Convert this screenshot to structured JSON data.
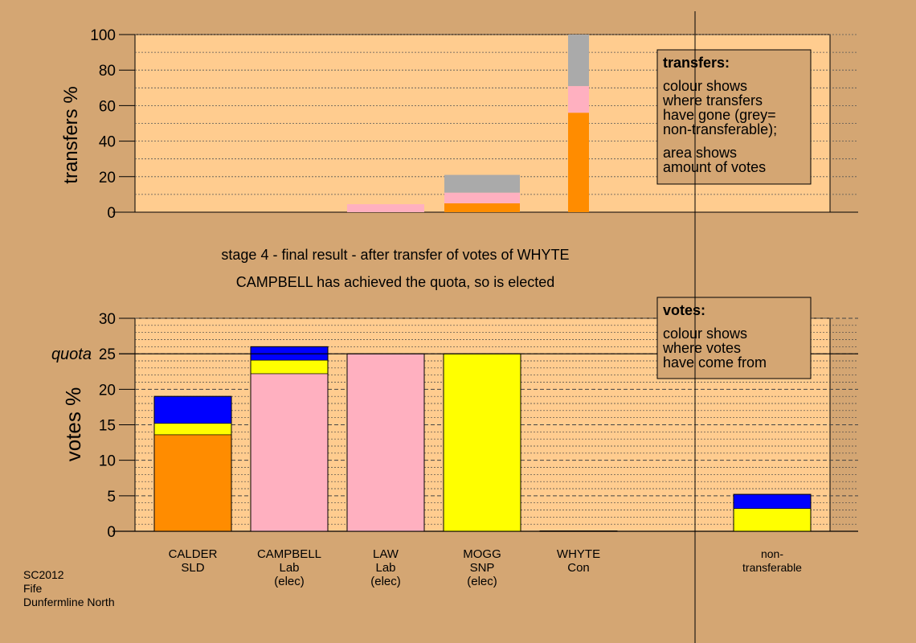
{
  "colors": {
    "background": "#d4a673",
    "plot_area": "#ffcc8f",
    "SLD": "#ff8c00",
    "Lab": "#ffb0c0",
    "SNP": "#ffff00",
    "Con": "#0000ff",
    "non_transferable": "#aaaaaa",
    "note_box": "#d4a673"
  },
  "title": {
    "line1": "stage 4 - final result - after transfer of votes of WHYTE",
    "line2": "CAMPBELL has achieved the quota, so is elected"
  },
  "footer": {
    "line1": "SC2012",
    "line2": "Fife",
    "line3": "Dunfermline North"
  },
  "candidates": [
    {
      "name": "CALDER",
      "party": "SLD",
      "status": ""
    },
    {
      "name": "CAMPBELL",
      "party": "Lab",
      "status": "(elec)"
    },
    {
      "name": "LAW",
      "party": "Lab",
      "status": "(elec)"
    },
    {
      "name": "MOGG",
      "party": "SNP",
      "status": "(elec)"
    },
    {
      "name": "WHYTE",
      "party": "Con",
      "status": ""
    },
    {
      "name": "non-",
      "party": "transferable",
      "status": ""
    }
  ],
  "legends": {
    "transfers": {
      "title": "transfers:",
      "text1": [
        "colour shows",
        "where transfers",
        "have gone (grey=",
        "non-transferable);"
      ],
      "text2": [
        "area shows",
        "amount of votes"
      ]
    },
    "votes": {
      "title": "votes:",
      "text1": [
        "colour shows",
        "where votes",
        "have come from"
      ]
    }
  },
  "chart_data": [
    {
      "type": "bar",
      "stacked": true,
      "ylabel": "transfers %",
      "ylim": [
        0,
        100
      ],
      "yticks": [
        0,
        20,
        40,
        60,
        80,
        100
      ],
      "grid": true,
      "bars": [
        {
          "category": "CALDER",
          "width_pct_of_votes": 0,
          "segments": []
        },
        {
          "category": "CAMPBELL",
          "width_pct_of_votes": 0,
          "segments": []
        },
        {
          "category": "LAW",
          "width_pct_of_votes": 0.3,
          "segments": [
            {
              "party": "Lab",
              "value": 4.5
            }
          ]
        },
        {
          "category": "MOGG",
          "width_pct_of_votes": 0.8,
          "segments": [
            {
              "party": "SLD",
              "value": 5
            },
            {
              "party": "Lab",
              "value": 6
            },
            {
              "party": "non_transferable",
              "value": 10
            }
          ]
        },
        {
          "category": "WHYTE",
          "width_pct_of_votes": 5.3,
          "segments": [
            {
              "party": "SLD",
              "value": 56
            },
            {
              "party": "Lab",
              "value": 15
            },
            {
              "party": "non_transferable",
              "value": 29
            }
          ]
        }
      ]
    },
    {
      "type": "bar",
      "stacked": true,
      "ylabel": "votes %",
      "ylim": [
        0,
        30
      ],
      "yticks": [
        0,
        5,
        10,
        15,
        20,
        25,
        30
      ],
      "quota": 25,
      "quota_label": "quota",
      "grid": true,
      "bars": [
        {
          "category": "CALDER",
          "segments": [
            {
              "party": "SLD",
              "value": 13.6
            },
            {
              "party": "SNP",
              "value": 1.6
            },
            {
              "party": "Con",
              "value": 3.8
            }
          ]
        },
        {
          "category": "CAMPBELL",
          "segments": [
            {
              "party": "Lab",
              "value": 22.2
            },
            {
              "party": "SNP",
              "value": 1.9
            },
            {
              "party": "Con",
              "value": 0.9
            },
            {
              "party": "Con",
              "value": 1.0
            }
          ]
        },
        {
          "category": "LAW",
          "segments": [
            {
              "party": "Lab",
              "value": 25
            }
          ]
        },
        {
          "category": "MOGG",
          "segments": [
            {
              "party": "SNP",
              "value": 25
            }
          ]
        },
        {
          "category": "WHYTE",
          "segments": [
            {
              "party": "Con",
              "value": 0.05
            }
          ]
        },
        {
          "category": "non-transferable",
          "segments": [
            {
              "party": "SNP",
              "value": 3.2
            },
            {
              "party": "Con",
              "value": 2.0
            }
          ]
        }
      ]
    }
  ]
}
